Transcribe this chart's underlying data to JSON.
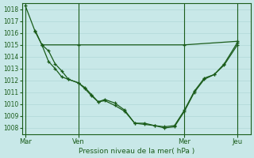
{
  "background_color": "#c8e8e8",
  "grid_color": "#b0d8d8",
  "line_color": "#1a5c1a",
  "xlabel": "Pression niveau de la mer( hPa )",
  "ylim": [
    1007.5,
    1018.5
  ],
  "yticks": [
    1008,
    1009,
    1010,
    1011,
    1012,
    1013,
    1014,
    1015,
    1016,
    1017,
    1018
  ],
  "xtick_labels": [
    "Mar",
    "Ven",
    "Mer",
    "Jeu"
  ],
  "xtick_positions": [
    0,
    16,
    48,
    64
  ],
  "vline_positions": [
    0,
    16,
    48,
    64
  ],
  "xlim": [
    -1,
    68
  ],
  "series1": {
    "x": [
      0,
      3,
      5,
      16,
      48,
      64
    ],
    "y": [
      1018.3,
      1016.1,
      1015.0,
      1015.0,
      1015.0,
      1015.3
    ]
  },
  "series2": {
    "x": [
      3,
      5,
      7,
      9,
      11,
      13,
      16,
      18,
      20,
      22,
      24,
      27,
      30,
      33,
      36,
      39,
      42,
      45,
      48,
      51,
      54,
      57,
      60,
      64
    ],
    "y": [
      1016.2,
      1015.0,
      1013.6,
      1013.0,
      1012.3,
      1012.1,
      1011.8,
      1011.4,
      1010.8,
      1010.2,
      1010.4,
      1010.1,
      1009.5,
      1008.4,
      1008.4,
      1008.2,
      1008.1,
      1008.2,
      1009.5,
      1011.1,
      1012.2,
      1012.5,
      1013.4,
      1015.2
    ]
  },
  "series3": {
    "x": [
      5,
      7,
      9,
      11,
      13,
      16,
      18,
      20,
      22,
      24,
      27,
      30,
      33,
      36,
      39,
      42,
      45,
      48,
      51,
      54,
      57,
      60,
      64
    ],
    "y": [
      1015.0,
      1014.5,
      1013.4,
      1012.8,
      1012.1,
      1011.8,
      1011.3,
      1010.7,
      1010.2,
      1010.3,
      1009.9,
      1009.4,
      1008.4,
      1008.3,
      1008.2,
      1008.0,
      1008.1,
      1009.4,
      1011.0,
      1012.1,
      1012.5,
      1013.3,
      1015.0
    ]
  }
}
